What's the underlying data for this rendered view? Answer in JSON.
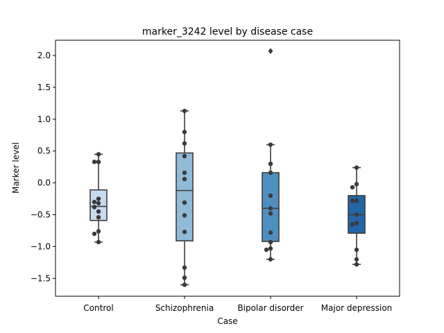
{
  "chart_data": {
    "type": "box",
    "title": "marker_3242 level by disease case",
    "xlabel": "Case",
    "ylabel": "Marker level",
    "ylim": [
      -1.78,
      2.24
    ],
    "yticks": [
      -1.5,
      -1.0,
      -0.5,
      0.0,
      0.5,
      1.0,
      1.5,
      2.0
    ],
    "ytick_labels": [
      "−1.5",
      "−1.0",
      "−0.5",
      "0.0",
      "0.5",
      "1.0",
      "1.5",
      "2.0"
    ],
    "grid": false,
    "categories": [
      "Control",
      "Schizophrenia",
      "Bipolar disorder",
      "Major depression"
    ],
    "colors": [
      "#c6dbef",
      "#8fbbd9",
      "#4f8fc0",
      "#2266a8"
    ],
    "edge_color": "#3c3c3c",
    "point_color": "#3a3a3a",
    "boxes": [
      {
        "q1": -0.59,
        "median": -0.37,
        "q3": -0.11,
        "whisker_low": -0.93,
        "whisker_high": 0.45,
        "fliers": []
      },
      {
        "q1": -0.91,
        "median": -0.12,
        "q3": 0.47,
        "whisker_low": -1.6,
        "whisker_high": 1.13,
        "fliers": []
      },
      {
        "q1": -0.92,
        "median": -0.4,
        "q3": 0.16,
        "whisker_low": -1.2,
        "whisker_high": 0.6,
        "fliers": [
          2.07
        ]
      },
      {
        "q1": -0.79,
        "median": -0.5,
        "q3": -0.2,
        "whisker_low": -1.28,
        "whisker_high": 0.24,
        "fliers": []
      }
    ],
    "points": [
      [
        0.45,
        0.33,
        0.33,
        -0.25,
        -0.3,
        -0.32,
        -0.38,
        -0.45,
        -0.54,
        -0.76,
        -0.8,
        -0.93
      ],
      [
        1.13,
        0.8,
        0.62,
        0.42,
        0.16,
        0.06,
        -0.31,
        -0.51,
        -0.77,
        -1.33,
        -1.49,
        -1.6
      ],
      [
        0.6,
        0.3,
        0.16,
        -0.2,
        -0.4,
        -0.48,
        -0.78,
        -0.93,
        -1.03,
        -1.05,
        -1.2
      ],
      [
        0.24,
        -0.02,
        -0.07,
        -0.28,
        -0.28,
        -0.5,
        -0.63,
        -0.65,
        -1.05,
        -1.2,
        -1.28
      ]
    ]
  }
}
